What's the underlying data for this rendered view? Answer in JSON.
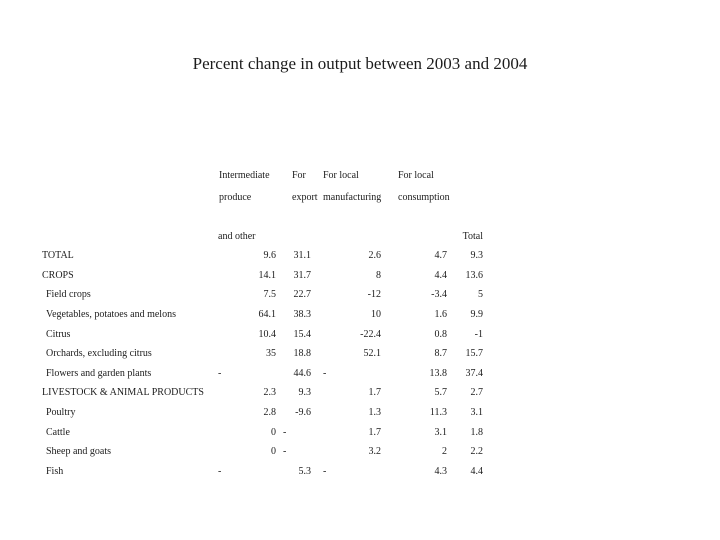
{
  "slide": {
    "title": "Percent change in output between 2003 and 2004",
    "background_color": "#ffffff",
    "text_color": "#1c1c1c"
  },
  "table": {
    "header": {
      "col1": {
        "line1": "Intermediate",
        "line2": "produce",
        "line3": "and other"
      },
      "col2": {
        "line1": "For",
        "line2": "export"
      },
      "col3": {
        "line1": "For local",
        "line2": "manufacturing"
      },
      "col4": {
        "line1": "For local",
        "line2": "consumption"
      },
      "total": "Total"
    },
    "rows": [
      {
        "label": "TOTAL",
        "indent": false,
        "values": [
          "9.6",
          "31.1",
          "2.6",
          "4.7",
          "9.3"
        ]
      },
      {
        "label": "CROPS",
        "indent": false,
        "values": [
          "14.1",
          "31.7",
          "8",
          "4.4",
          "13.6"
        ]
      },
      {
        "label": "Field crops",
        "indent": true,
        "values": [
          "7.5",
          "22.7",
          "-12",
          "-3.4",
          "5"
        ]
      },
      {
        "label": "Vegetables, potatoes and melons",
        "indent": true,
        "values": [
          "64.1",
          "38.3",
          "10",
          "1.6",
          "9.9"
        ]
      },
      {
        "label": "Citrus",
        "indent": true,
        "values": [
          "10.4",
          "15.4",
          "-22.4",
          "0.8",
          "-1"
        ]
      },
      {
        "label": "Orchards, excluding citrus",
        "indent": true,
        "values": [
          "35",
          "18.8",
          "52.1",
          "8.7",
          "15.7"
        ]
      },
      {
        "label": "Flowers and garden plants",
        "indent": true,
        "values": [
          "-",
          "44.6",
          "-",
          "13.8",
          "37.4"
        ]
      },
      {
        "label": "LIVESTOCK & ANIMAL PRODUCTS",
        "indent": false,
        "values": [
          "2.3",
          "9.3",
          "1.7",
          "5.7",
          "2.7"
        ]
      },
      {
        "label": "Poultry",
        "indent": true,
        "values": [
          "2.8",
          "-9.6",
          "1.3",
          "11.3",
          "3.1"
        ]
      },
      {
        "label": "Cattle",
        "indent": true,
        "values": [
          "0",
          "-",
          "1.7",
          "3.1",
          "1.8"
        ]
      },
      {
        "label": "Sheep and goats",
        "indent": true,
        "values": [
          "0",
          "-",
          "3.2",
          "2",
          "2.2"
        ]
      },
      {
        "label": "Fish",
        "indent": true,
        "values": [
          "-",
          "5.3",
          "-",
          "4.3",
          "4.4"
        ]
      }
    ]
  }
}
